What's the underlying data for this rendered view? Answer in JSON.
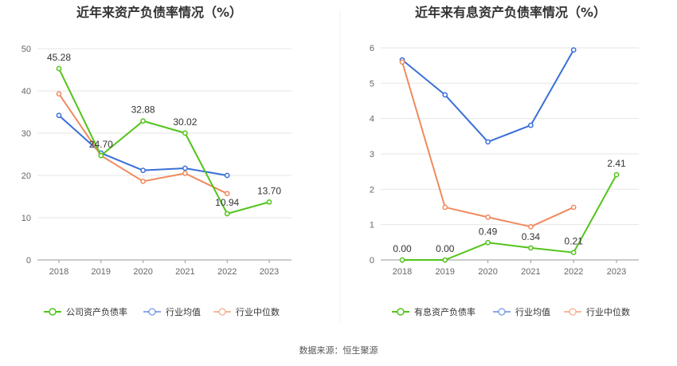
{
  "chart_data": [
    {
      "type": "line",
      "title": "近年来资产负债率情况（%）",
      "categories": [
        "2018",
        "2019",
        "2020",
        "2021",
        "2022",
        "2023"
      ],
      "ylim": [
        0,
        50
      ],
      "yticks": [
        0,
        10,
        20,
        30,
        40,
        50
      ],
      "grid": true,
      "legend_position": "bottom",
      "series": [
        {
          "name": "公司资产负债率",
          "color": "#52c41a",
          "values": [
            45.28,
            24.7,
            32.88,
            30.02,
            10.94,
            13.7
          ],
          "labels": [
            "45.28",
            "24.70",
            "32.88",
            "30.02",
            "10.94",
            "13.70"
          ]
        },
        {
          "name": "行业均值",
          "color": "#3a6fd8",
          "values": [
            34.2,
            25.3,
            21.2,
            21.7,
            20.0,
            null
          ]
        },
        {
          "name": "行业中位数",
          "color": "#f08a5d",
          "values": [
            39.3,
            24.7,
            18.6,
            20.5,
            15.7,
            null
          ]
        }
      ]
    },
    {
      "type": "line",
      "title": "近年来有息资产负债率情况（%）",
      "categories": [
        "2018",
        "2019",
        "2020",
        "2021",
        "2022",
        "2023"
      ],
      "ylim": [
        0,
        6
      ],
      "yticks": [
        0,
        1,
        2,
        3,
        4,
        5,
        6
      ],
      "grid": true,
      "legend_position": "bottom",
      "series": [
        {
          "name": "有息资产负债率",
          "color": "#52c41a",
          "values": [
            0.0,
            0.0,
            0.49,
            0.34,
            0.21,
            2.41
          ],
          "labels": [
            "0.00",
            "0.00",
            "0.49",
            "0.34",
            "0.21",
            "2.41"
          ]
        },
        {
          "name": "行业均值",
          "color": "#3a6fd8",
          "values": [
            5.66,
            4.67,
            3.34,
            3.81,
            5.94,
            null
          ]
        },
        {
          "name": "行业中位数",
          "color": "#f08a5d",
          "values": [
            5.6,
            1.49,
            1.21,
            0.94,
            1.49,
            null
          ]
        }
      ]
    }
  ],
  "source_text": "数据来源：恒生聚源"
}
